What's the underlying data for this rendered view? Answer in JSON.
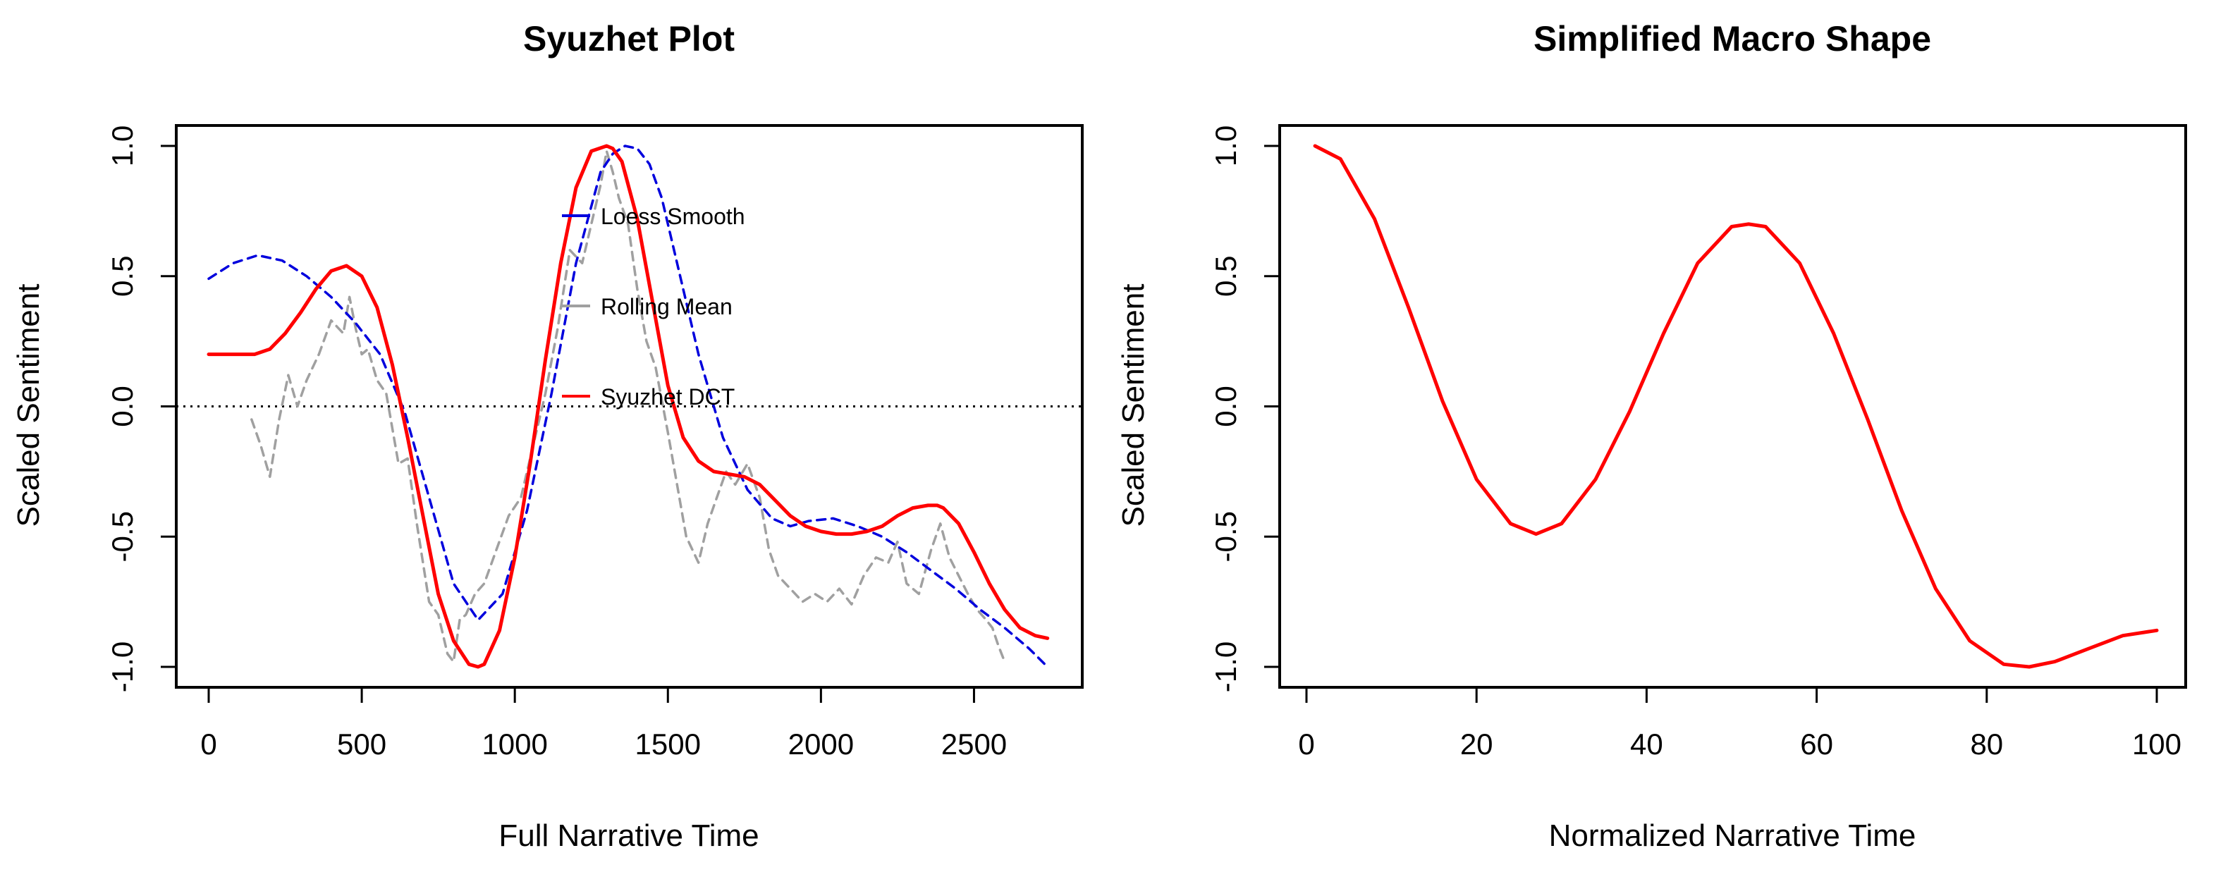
{
  "chart_data": [
    {
      "type": "line",
      "title": "Syuzhet Plot",
      "xlabel": "Full Narrative Time",
      "ylabel": "Scaled Sentiment",
      "xlim": [
        0,
        2750
      ],
      "ylim": [
        -1.0,
        1.0
      ],
      "xticks": [
        0,
        500,
        1000,
        1500,
        2000,
        2500
      ],
      "xtick_labels": [
        "0",
        "500",
        "1000",
        "1500",
        "2000",
        "2500"
      ],
      "yticks": [
        -1.0,
        -0.5,
        0.0,
        0.5,
        1.0
      ],
      "ytick_labels": [
        "-1.0",
        "-0.5",
        "0.0",
        "0.5",
        "1.0"
      ],
      "reference_line": {
        "y": 0.0,
        "style": "dotted",
        "color": "#000000"
      },
      "legend": {
        "placement": "top-center",
        "entries": [
          "Loess Smooth",
          "Rolling Mean",
          "Syuzhet DCT"
        ]
      },
      "series": [
        {
          "name": "Rolling Mean",
          "color": "#a0a0a0",
          "style": "dashed",
          "x": [
            140,
            170,
            200,
            230,
            260,
            290,
            320,
            360,
            400,
            440,
            460,
            480,
            500,
            520,
            550,
            580,
            620,
            650,
            680,
            700,
            720,
            750,
            780,
            800,
            820,
            840,
            870,
            900,
            940,
            980,
            1020,
            1060,
            1100,
            1140,
            1180,
            1220,
            1250,
            1280,
            1300,
            1320,
            1340,
            1370,
            1400,
            1430,
            1460,
            1500,
            1530,
            1560,
            1600,
            1630,
            1660,
            1690,
            1720,
            1760,
            1800,
            1830,
            1860,
            1900,
            1940,
            1980,
            2020,
            2060,
            2100,
            2140,
            2180,
            2220,
            2250,
            2280,
            2320,
            2360,
            2390,
            2420,
            2450,
            2480,
            2510,
            2540,
            2560,
            2580,
            2600
          ],
          "y": [
            -0.05,
            -0.15,
            -0.27,
            -0.05,
            0.12,
            0.0,
            0.1,
            0.2,
            0.33,
            0.28,
            0.42,
            0.3,
            0.2,
            0.22,
            0.1,
            0.05,
            -0.22,
            -0.2,
            -0.45,
            -0.6,
            -0.75,
            -0.8,
            -0.95,
            -0.98,
            -0.82,
            -0.8,
            -0.72,
            -0.68,
            -0.55,
            -0.42,
            -0.35,
            -0.15,
            0.05,
            0.3,
            0.6,
            0.55,
            0.7,
            0.85,
            0.98,
            0.9,
            0.8,
            0.7,
            0.45,
            0.25,
            0.15,
            -0.1,
            -0.3,
            -0.5,
            -0.6,
            -0.45,
            -0.35,
            -0.25,
            -0.3,
            -0.22,
            -0.35,
            -0.55,
            -0.65,
            -0.7,
            -0.75,
            -0.72,
            -0.75,
            -0.7,
            -0.76,
            -0.65,
            -0.58,
            -0.6,
            -0.52,
            -0.68,
            -0.72,
            -0.55,
            -0.45,
            -0.58,
            -0.65,
            -0.72,
            -0.78,
            -0.82,
            -0.85,
            -0.92,
            -0.98
          ]
        },
        {
          "name": "Loess Smooth",
          "color": "#0000dd",
          "style": "dashed",
          "x": [
            0,
            80,
            160,
            240,
            320,
            400,
            480,
            560,
            640,
            720,
            800,
            880,
            960,
            1040,
            1120,
            1200,
            1280,
            1320,
            1360,
            1400,
            1440,
            1480,
            1520,
            1600,
            1680,
            1760,
            1840,
            1900,
            1960,
            2040,
            2120,
            2200,
            2280,
            2360,
            2440,
            2520,
            2600,
            2680,
            2740
          ],
          "y": [
            0.49,
            0.55,
            0.58,
            0.56,
            0.5,
            0.42,
            0.32,
            0.2,
            -0.02,
            -0.35,
            -0.68,
            -0.82,
            -0.72,
            -0.4,
            0.05,
            0.55,
            0.9,
            0.97,
            1.0,
            0.99,
            0.93,
            0.8,
            0.6,
            0.2,
            -0.12,
            -0.32,
            -0.43,
            -0.46,
            -0.44,
            -0.43,
            -0.46,
            -0.5,
            -0.56,
            -0.63,
            -0.7,
            -0.78,
            -0.85,
            -0.93,
            -1.0
          ]
        },
        {
          "name": "Syuzhet DCT",
          "color": "#ff0000",
          "style": "solid",
          "x": [
            0,
            50,
            100,
            150,
            200,
            250,
            300,
            350,
            400,
            450,
            500,
            550,
            600,
            650,
            700,
            750,
            800,
            850,
            880,
            900,
            950,
            1000,
            1050,
            1100,
            1150,
            1200,
            1250,
            1300,
            1320,
            1350,
            1400,
            1450,
            1500,
            1550,
            1600,
            1650,
            1700,
            1750,
            1800,
            1850,
            1900,
            1950,
            2000,
            2050,
            2100,
            2150,
            2200,
            2250,
            2300,
            2350,
            2380,
            2400,
            2450,
            2500,
            2550,
            2600,
            2650,
            2700,
            2740
          ],
          "y": [
            0.2,
            0.2,
            0.2,
            0.2,
            0.22,
            0.28,
            0.36,
            0.45,
            0.52,
            0.54,
            0.5,
            0.38,
            0.16,
            -0.12,
            -0.42,
            -0.72,
            -0.9,
            -0.99,
            -1.0,
            -0.99,
            -0.86,
            -0.58,
            -0.22,
            0.18,
            0.55,
            0.84,
            0.98,
            1.0,
            0.99,
            0.94,
            0.72,
            0.4,
            0.08,
            -0.12,
            -0.21,
            -0.25,
            -0.26,
            -0.27,
            -0.3,
            -0.36,
            -0.42,
            -0.46,
            -0.48,
            -0.49,
            -0.49,
            -0.48,
            -0.46,
            -0.42,
            -0.39,
            -0.38,
            -0.38,
            -0.39,
            -0.45,
            -0.56,
            -0.68,
            -0.78,
            -0.85,
            -0.88,
            -0.89
          ]
        }
      ]
    },
    {
      "type": "line",
      "title": "Simplified Macro Shape",
      "xlabel": "Normalized Narrative Time",
      "ylabel": "Scaled Sentiment",
      "xlim": [
        0,
        100
      ],
      "ylim": [
        -1.0,
        1.0
      ],
      "xticks": [
        0,
        20,
        40,
        60,
        80,
        100
      ],
      "xtick_labels": [
        "0",
        "20",
        "40",
        "60",
        "80",
        "100"
      ],
      "yticks": [
        -1.0,
        -0.5,
        0.0,
        0.5,
        1.0
      ],
      "ytick_labels": [
        "-1.0",
        "-0.5",
        "0.0",
        "0.5",
        "1.0"
      ],
      "series": [
        {
          "name": "Macro Shape",
          "color": "#ff0000",
          "style": "solid",
          "x": [
            1,
            4,
            8,
            12,
            16,
            20,
            24,
            27,
            30,
            34,
            38,
            42,
            46,
            50,
            52,
            54,
            58,
            62,
            66,
            70,
            74,
            78,
            82,
            85,
            88,
            92,
            96,
            100
          ],
          "y": [
            1.0,
            0.95,
            0.72,
            0.38,
            0.02,
            -0.28,
            -0.45,
            -0.49,
            -0.45,
            -0.28,
            -0.02,
            0.28,
            0.55,
            0.69,
            0.7,
            0.69,
            0.55,
            0.28,
            -0.05,
            -0.4,
            -0.7,
            -0.9,
            -0.99,
            -1.0,
            -0.98,
            -0.93,
            -0.88,
            -0.86
          ]
        }
      ]
    }
  ]
}
